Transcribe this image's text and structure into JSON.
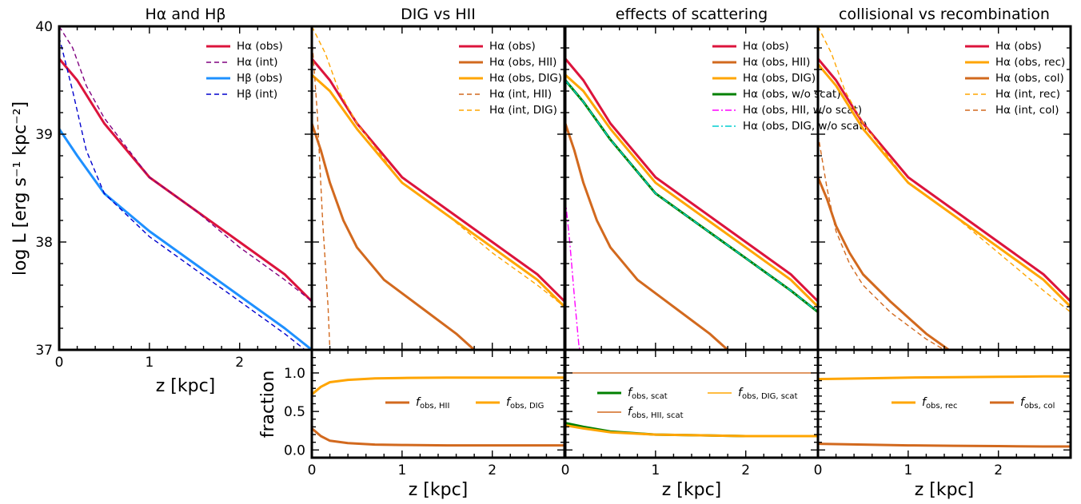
{
  "figure": {
    "panel_titles": [
      "Hα and Hβ",
      "DIG vs HII",
      "effects of scattering",
      "collisional vs recombination"
    ],
    "ylabel_top": "log L [erg s⁻¹ kpc⁻²]",
    "ylabel_bottom": "fraction",
    "xlabel": "z [kpc]"
  },
  "chart_data": [
    {
      "type": "line",
      "title": "Hα and Hβ",
      "xlabel": "z [kpc]",
      "ylabel": "log L [erg s⁻¹ kpc⁻²]",
      "xlim": [
        0,
        2.8
      ],
      "ylim": [
        37,
        40
      ],
      "xticks": [
        "0",
        "1",
        "2"
      ],
      "yticks": [
        "37",
        "38",
        "39",
        "40"
      ],
      "legend_position": "top-right",
      "series": [
        {
          "name": "Hα (obs)",
          "color": "#dc143c",
          "style": "solid",
          "x": [
            0,
            0.2,
            0.5,
            1.0,
            1.5,
            2.0,
            2.5,
            2.8
          ],
          "y": [
            39.7,
            39.5,
            39.1,
            38.6,
            38.3,
            38.0,
            37.7,
            37.45
          ]
        },
        {
          "name": "Hα (int)",
          "color": "#800080",
          "style": "dashed",
          "x": [
            0,
            0.15,
            0.3,
            0.5,
            1.0,
            1.5,
            2.0,
            2.5,
            2.8
          ],
          "y": [
            40.0,
            39.8,
            39.45,
            39.15,
            38.6,
            38.3,
            37.95,
            37.65,
            37.45
          ]
        },
        {
          "name": "Hβ (obs)",
          "color": "#1e90ff",
          "style": "solid",
          "x": [
            0,
            0.2,
            0.5,
            1.0,
            1.5,
            2.0,
            2.5,
            2.8
          ],
          "y": [
            39.05,
            38.8,
            38.45,
            38.1,
            37.8,
            37.5,
            37.2,
            37.0
          ]
        },
        {
          "name": "Hβ (int)",
          "color": "#0000cd",
          "style": "dashed",
          "x": [
            0,
            0.15,
            0.3,
            0.5,
            1.0,
            1.5,
            2.0,
            2.5,
            2.8
          ],
          "y": [
            39.9,
            39.4,
            38.85,
            38.45,
            38.05,
            37.75,
            37.45,
            37.15,
            36.95
          ]
        }
      ]
    },
    {
      "type": "line",
      "title": "DIG vs HII",
      "xlim": [
        0,
        2.8
      ],
      "ylim": [
        37,
        40
      ],
      "legend_position": "top-right",
      "series": [
        {
          "name": "Hα (obs)",
          "color": "#dc143c",
          "style": "solid",
          "x": [
            0,
            0.2,
            0.5,
            1.0,
            1.5,
            2.0,
            2.5,
            2.8
          ],
          "y": [
            39.7,
            39.5,
            39.1,
            38.6,
            38.3,
            38.0,
            37.7,
            37.45
          ]
        },
        {
          "name": "Hα (obs, HII)",
          "color": "#d2691e",
          "style": "solid",
          "x": [
            0,
            0.1,
            0.2,
            0.35,
            0.5,
            0.8,
            1.2,
            1.6,
            1.8
          ],
          "y": [
            39.1,
            38.85,
            38.55,
            38.2,
            37.95,
            37.65,
            37.4,
            37.15,
            37.0
          ]
        },
        {
          "name": "Hα (obs, DIG)",
          "color": "#ffa500",
          "style": "solid",
          "x": [
            0,
            0.2,
            0.5,
            1.0,
            1.5,
            2.0,
            2.5,
            2.8
          ],
          "y": [
            39.55,
            39.4,
            39.05,
            38.55,
            38.25,
            37.95,
            37.65,
            37.4
          ]
        },
        {
          "name": "Hα (int, HII)",
          "color": "#d2691e",
          "style": "dashed",
          "x": [
            0,
            0.06,
            0.12,
            0.18,
            0.2
          ],
          "y": [
            39.9,
            39.2,
            38.2,
            37.4,
            37.0
          ]
        },
        {
          "name": "Hα (int, DIG)",
          "color": "#ffa500",
          "style": "dashed",
          "x": [
            0,
            0.15,
            0.3,
            0.5,
            1.0,
            1.5,
            2.0,
            2.5,
            2.8
          ],
          "y": [
            40.0,
            39.75,
            39.4,
            39.1,
            38.55,
            38.25,
            37.9,
            37.6,
            37.4
          ]
        }
      ]
    },
    {
      "type": "line",
      "title": "effects of scattering",
      "xlim": [
        0,
        2.8
      ],
      "ylim": [
        37,
        40
      ],
      "legend_position": "top-right",
      "series": [
        {
          "name": "Hα (obs)",
          "color": "#dc143c",
          "style": "solid",
          "x": [
            0,
            0.2,
            0.5,
            1.0,
            1.5,
            2.0,
            2.5,
            2.8
          ],
          "y": [
            39.7,
            39.5,
            39.1,
            38.6,
            38.3,
            38.0,
            37.7,
            37.45
          ]
        },
        {
          "name": "Hα (obs, HII)",
          "color": "#d2691e",
          "style": "solid",
          "x": [
            0,
            0.1,
            0.2,
            0.35,
            0.5,
            0.8,
            1.2,
            1.6,
            1.8
          ],
          "y": [
            39.1,
            38.85,
            38.55,
            38.2,
            37.95,
            37.65,
            37.4,
            37.15,
            37.0
          ]
        },
        {
          "name": "Hα (obs, DIG)",
          "color": "#ffa500",
          "style": "solid",
          "x": [
            0,
            0.2,
            0.5,
            1.0,
            1.5,
            2.0,
            2.5,
            2.8
          ],
          "y": [
            39.55,
            39.4,
            39.05,
            38.55,
            38.25,
            37.95,
            37.65,
            37.4
          ]
        },
        {
          "name": "Hα (obs, w/o scat)",
          "color": "#008000",
          "style": "solid",
          "x": [
            0,
            0.2,
            0.5,
            1.0,
            1.5,
            2.0,
            2.5,
            2.8
          ],
          "y": [
            39.5,
            39.3,
            38.95,
            38.45,
            38.15,
            37.85,
            37.55,
            37.35
          ]
        },
        {
          "name": "Hα (obs, HII, w/o scat)",
          "color": "#ff00ff",
          "style": "dashdot",
          "x": [
            0,
            0.05,
            0.1,
            0.15,
            0.16
          ],
          "y": [
            38.4,
            38.0,
            37.5,
            37.05,
            37.0
          ]
        },
        {
          "name": "Hα (obs, DIG, w/o scat)",
          "color": "#00ced1",
          "style": "dashdot",
          "x": [
            0,
            0.2,
            0.5,
            1.0,
            1.5,
            2.0,
            2.5,
            2.8
          ],
          "y": [
            39.5,
            39.3,
            38.95,
            38.45,
            38.15,
            37.85,
            37.55,
            37.35
          ]
        }
      ]
    },
    {
      "type": "line",
      "title": "collisional vs recombination",
      "xlim": [
        0,
        2.8
      ],
      "ylim": [
        37,
        40
      ],
      "legend_position": "top-right",
      "series": [
        {
          "name": "Hα (obs)",
          "color": "#dc143c",
          "style": "solid",
          "x": [
            0,
            0.2,
            0.5,
            1.0,
            1.5,
            2.0,
            2.5,
            2.8
          ],
          "y": [
            39.7,
            39.5,
            39.1,
            38.6,
            38.3,
            38.0,
            37.7,
            37.45
          ]
        },
        {
          "name": "Hα (obs, rec)",
          "color": "#ffa500",
          "style": "solid",
          "x": [
            0,
            0.2,
            0.5,
            1.0,
            1.5,
            2.0,
            2.5,
            2.8
          ],
          "y": [
            39.65,
            39.45,
            39.05,
            38.55,
            38.25,
            37.95,
            37.65,
            37.4
          ]
        },
        {
          "name": "Hα (obs, col)",
          "color": "#d2691e",
          "style": "solid",
          "x": [
            0,
            0.1,
            0.2,
            0.35,
            0.5,
            0.8,
            1.2,
            1.45
          ],
          "y": [
            38.6,
            38.4,
            38.15,
            37.9,
            37.7,
            37.45,
            37.15,
            37.0
          ]
        },
        {
          "name": "Hα (int, rec)",
          "color": "#ffa500",
          "style": "dashed",
          "x": [
            0,
            0.15,
            0.3,
            0.5,
            1.0,
            1.5,
            2.0,
            2.5,
            2.8
          ],
          "y": [
            40.0,
            39.75,
            39.4,
            39.1,
            38.55,
            38.25,
            37.9,
            37.55,
            37.35
          ]
        },
        {
          "name": "Hα (int, col)",
          "color": "#d2691e",
          "style": "dashed",
          "x": [
            0,
            0.1,
            0.2,
            0.35,
            0.5,
            0.8,
            1.2,
            1.4
          ],
          "y": [
            39.0,
            38.5,
            38.1,
            37.8,
            37.6,
            37.35,
            37.1,
            37.0
          ]
        }
      ]
    },
    {
      "type": "line",
      "title": "",
      "xlabel": "z [kpc]",
      "ylabel": "fraction",
      "xlim": [
        0,
        2.8
      ],
      "ylim": [
        -0.1,
        1.3
      ],
      "xticks": [
        "0",
        "1",
        "2"
      ],
      "yticks": [
        "0.0",
        "0.5",
        "1.0"
      ],
      "series": [
        {
          "name": "f_obs,HII",
          "label_main": "f",
          "label_sub": "obs, HII",
          "color": "#d2691e",
          "style": "solid",
          "x": [
            0,
            0.1,
            0.2,
            0.4,
            0.7,
            1.0,
            1.5,
            2.0,
            2.5,
            2.8
          ],
          "y": [
            0.28,
            0.18,
            0.12,
            0.09,
            0.07,
            0.065,
            0.06,
            0.06,
            0.06,
            0.06
          ]
        },
        {
          "name": "f_obs,DIG",
          "label_main": "f",
          "label_sub": "obs, DIG",
          "color": "#ffa500",
          "style": "solid",
          "x": [
            0,
            0.1,
            0.2,
            0.4,
            0.7,
            1.0,
            1.5,
            2.0,
            2.5,
            2.8
          ],
          "y": [
            0.72,
            0.82,
            0.88,
            0.91,
            0.93,
            0.935,
            0.94,
            0.94,
            0.94,
            0.94
          ]
        }
      ]
    },
    {
      "type": "line",
      "title": "",
      "xlabel": "z [kpc]",
      "xlim": [
        0,
        2.8
      ],
      "ylim": [
        -0.1,
        1.3
      ],
      "xticks": [
        "0",
        "1",
        "2"
      ],
      "series": [
        {
          "name": "f_obs,scat",
          "label_main": "f",
          "label_sub": "obs, scat",
          "color": "#008000",
          "style": "solid",
          "x": [
            0,
            0.2,
            0.5,
            1.0,
            1.5,
            2.0,
            2.5,
            2.8
          ],
          "y": [
            0.35,
            0.3,
            0.24,
            0.2,
            0.19,
            0.18,
            0.18,
            0.18
          ]
        },
        {
          "name": "f_obs,HII,scat",
          "label_main": "f",
          "label_sub": "obs, HII, scat",
          "color": "#d2691e",
          "style": "solid",
          "x": [
            0,
            2.8
          ],
          "y": [
            1.0,
            1.0
          ]
        },
        {
          "name": "f_obs,DIG,scat",
          "label_main": "f",
          "label_sub": "obs, DIG, scat",
          "color": "#ffa500",
          "style": "solid",
          "x": [
            0,
            0.2,
            0.5,
            1.0,
            1.5,
            2.0,
            2.5,
            2.8
          ],
          "y": [
            0.32,
            0.28,
            0.23,
            0.2,
            0.19,
            0.18,
            0.18,
            0.18
          ]
        }
      ]
    },
    {
      "type": "line",
      "title": "",
      "xlabel": "z [kpc]",
      "xlim": [
        0,
        2.8
      ],
      "ylim": [
        -0.1,
        1.3
      ],
      "xticks": [
        "0",
        "1",
        "2"
      ],
      "series": [
        {
          "name": "f_obs,rec",
          "label_main": "f",
          "label_sub": "obs, rec",
          "color": "#ffa500",
          "style": "solid",
          "x": [
            0,
            0.5,
            1.0,
            1.5,
            2.0,
            2.5,
            2.8
          ],
          "y": [
            0.92,
            0.93,
            0.94,
            0.945,
            0.95,
            0.955,
            0.955
          ]
        },
        {
          "name": "f_obs,col",
          "label_main": "f",
          "label_sub": "obs, col",
          "color": "#d2691e",
          "style": "solid",
          "x": [
            0,
            0.5,
            1.0,
            1.5,
            2.0,
            2.5,
            2.8
          ],
          "y": [
            0.08,
            0.07,
            0.06,
            0.055,
            0.05,
            0.045,
            0.045
          ]
        }
      ]
    }
  ]
}
